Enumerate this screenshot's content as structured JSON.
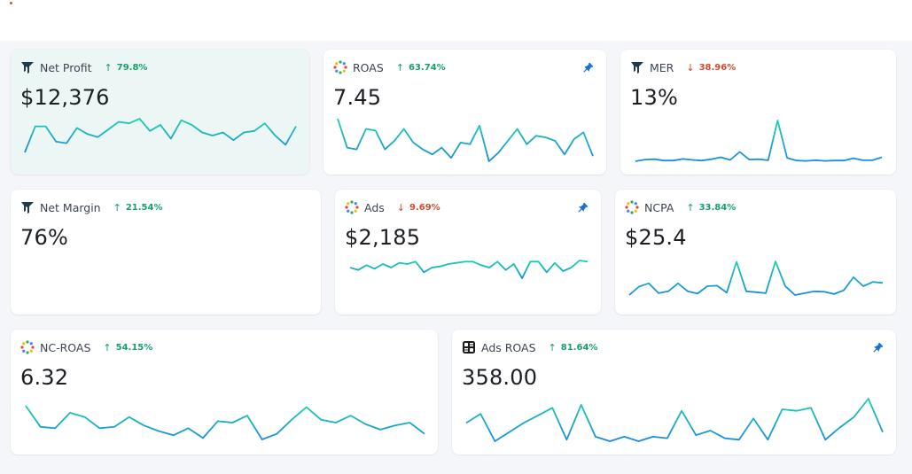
{
  "colors": {
    "line_start": "#19d3a8",
    "line_end": "#1a8bdf",
    "up": "#16a06a",
    "down": "#d24b2c",
    "pin": "#1570d6",
    "highlight_bg": "#ecf6f4"
  },
  "cards": [
    {
      "id": "net-profit",
      "title": "Net Profit",
      "icon": "tree-logo-icon",
      "delta": "79.8%",
      "direction": "up",
      "value": "$12,376",
      "pinned": false,
      "highlight": true,
      "series": [
        58,
        75,
        75,
        65,
        64,
        74,
        70,
        68,
        73,
        78,
        77,
        80,
        72,
        76,
        67,
        79,
        76,
        71,
        69,
        71,
        66,
        71,
        72,
        77,
        69,
        63,
        75
      ]
    },
    {
      "id": "roas",
      "title": "ROAS",
      "icon": "dots-ring-icon",
      "delta": "63.74%",
      "direction": "up",
      "value": "7.45",
      "pinned": true,
      "highlight": false,
      "series": [
        3.4,
        1.7,
        1.6,
        2.8,
        2.7,
        1.6,
        2.1,
        2.8,
        2.0,
        1.6,
        1.3,
        1.7,
        1.1,
        2.0,
        1.9,
        3.0,
        0.9,
        1.4,
        2.1,
        2.8,
        1.9,
        2.4,
        2.3,
        2.1,
        1.3,
        2.2,
        2.6,
        1.2
      ]
    },
    {
      "id": "mer",
      "title": "MER",
      "icon": "tree-logo-icon",
      "delta": "38.96%",
      "direction": "down",
      "value": "13%",
      "pinned": false,
      "highlight": false,
      "series": [
        9.0,
        9.5,
        9.6,
        9.2,
        9.2,
        9.7,
        9.4,
        9.2,
        9.6,
        10.2,
        9.4,
        11.8,
        9.5,
        9.6,
        9.3,
        21.2,
        10.0,
        9.2,
        9.1,
        9.3,
        9.1,
        9.2,
        9.2,
        9.9,
        9.3,
        9.3,
        10.2
      ]
    },
    {
      "id": "net-margin",
      "title": "Net Margin",
      "icon": "tree-logo-icon",
      "delta": "21.54%",
      "direction": "up",
      "value": "76%",
      "pinned": false,
      "highlight": false,
      "series": []
    },
    {
      "id": "ads",
      "title": "Ads",
      "icon": "dots-ring-icon",
      "delta": "9.69%",
      "direction": "down",
      "value": "$2,185",
      "pinned": true,
      "highlight": false,
      "series": [
        2200,
        2180,
        2220,
        2190,
        2230,
        2200,
        2240,
        2230,
        2250,
        2160,
        2200,
        2210,
        2230,
        2240,
        2250,
        2250,
        2220,
        2200,
        2250,
        2180,
        2230,
        2110,
        2250,
        2250,
        2160,
        2240,
        2170,
        2200,
        2260,
        2250
      ]
    },
    {
      "id": "ncpa",
      "title": "NCPA",
      "icon": "dots-ring-icon",
      "delta": "33.84%",
      "direction": "up",
      "value": "$25.4",
      "pinned": false,
      "highlight": false,
      "series": [
        22.0,
        23.8,
        24.5,
        22.4,
        22.8,
        24.5,
        22.8,
        22.3,
        23.9,
        24.0,
        22.5,
        29.1,
        22.8,
        22.6,
        22.4,
        29.2,
        23.9,
        22.0,
        22.4,
        22.8,
        22.7,
        22.2,
        23.0,
        25.8,
        23.9,
        24.8,
        24.6
      ]
    },
    {
      "id": "nc-roas",
      "title": "NC-ROAS",
      "icon": "dots-ring-icon",
      "delta": "54.15%",
      "direction": "up",
      "value": "6.32",
      "pinned": false,
      "highlight": false,
      "series": [
        6.6,
        5.1,
        5.0,
        6.1,
        5.8,
        5.0,
        5.1,
        5.8,
        5.2,
        4.8,
        4.5,
        5.0,
        4.3,
        5.5,
        5.4,
        5.9,
        4.2,
        4.6,
        5.6,
        6.5,
        5.6,
        5.4,
        5.9,
        5.3,
        4.9,
        5.2,
        5.4,
        4.6
      ]
    },
    {
      "id": "ads-roas",
      "title": "Ads ROAS",
      "icon": "ledger-grid-icon",
      "delta": "81.64%",
      "direction": "up",
      "value": "358.00",
      "pinned": true,
      "highlight": false,
      "series": [
        352,
        358,
        340,
        346,
        352,
        357,
        362,
        341,
        364,
        343,
        340,
        343,
        340,
        343,
        342,
        360,
        344,
        347,
        342,
        341,
        355,
        341,
        361,
        360,
        362,
        341,
        349,
        356,
        368,
        346
      ]
    }
  ]
}
